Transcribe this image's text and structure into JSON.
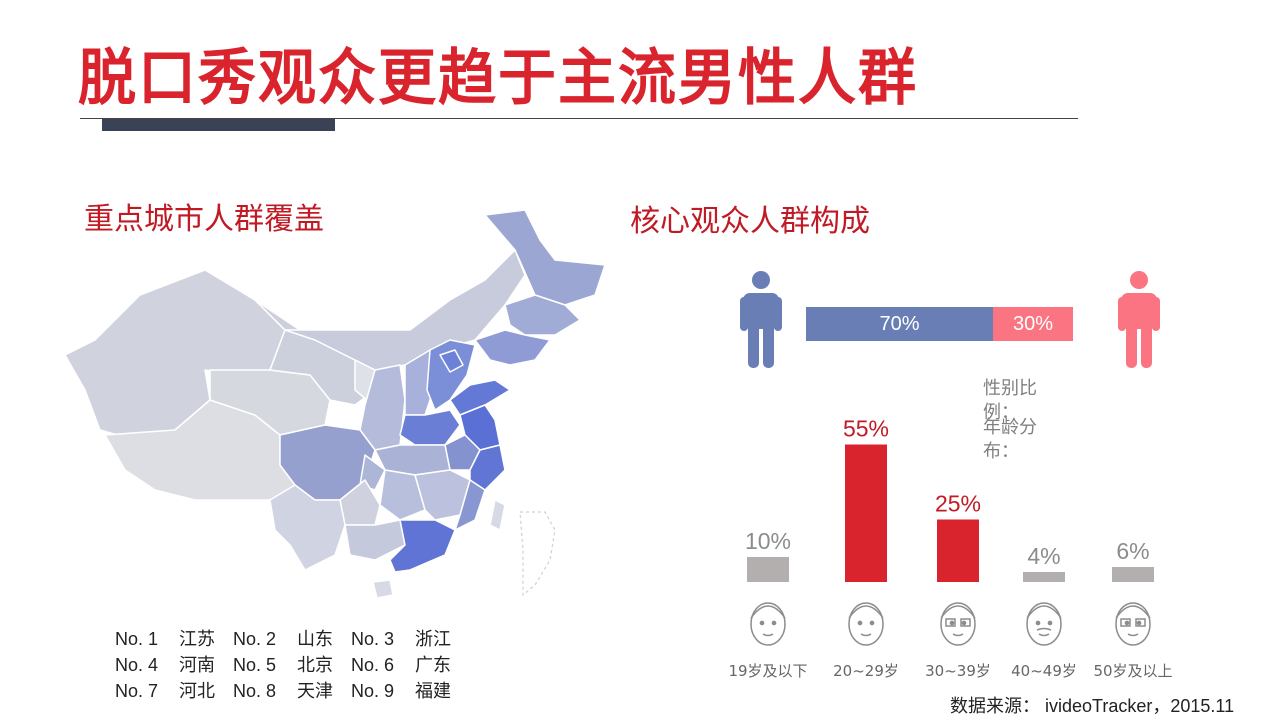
{
  "title": "脱口秀观众更趋于主流男性人群",
  "map_section": {
    "heading": "重点城市人群覆盖",
    "ranking": [
      [
        {
          "no": "No. 1",
          "city": "江苏"
        },
        {
          "no": "No. 2",
          "city": "山东"
        },
        {
          "no": "No. 3",
          "city": "浙江"
        }
      ],
      [
        {
          "no": "No. 4",
          "city": "河南"
        },
        {
          "no": "No. 5",
          "city": "北京"
        },
        {
          "no": "No. 6",
          "city": "广东"
        }
      ],
      [
        {
          "no": "No. 7",
          "city": "河北"
        },
        {
          "no": "No. 8",
          "city": "天津"
        },
        {
          "no": "No. 9",
          "city": "福建"
        }
      ]
    ]
  },
  "audience_section": {
    "heading": "核心观众人群构成",
    "gender_label": "性别比例：",
    "age_label": "年龄分布：",
    "male_color": "#6a7eb6",
    "female_color": "#fa7581"
  },
  "chart_data": [
    {
      "type": "bar",
      "orientation": "horizontal-stacked",
      "categories": [
        "male",
        "female"
      ],
      "values": [
        70,
        30
      ],
      "labels": [
        "70%",
        "30%"
      ],
      "colors": [
        "#6a7eb6",
        "#fa7581"
      ]
    },
    {
      "type": "bar",
      "categories": [
        "19岁及以下",
        "20~29岁",
        "30~39岁",
        "40~49岁",
        "50岁及以上"
      ],
      "values": [
        10,
        55,
        25,
        4,
        6
      ],
      "labels": [
        "10%",
        "55%",
        "25%",
        "4%",
        "6%"
      ],
      "highlight": [
        false,
        true,
        true,
        false,
        false
      ],
      "highlight_color": "#d9232d",
      "base_color": "#b4afaf",
      "icons": [
        "child-face-icon",
        "young-adult-face-icon",
        "glasses-face-icon",
        "mustache-face-icon",
        "elder-face-icon"
      ]
    }
  ],
  "source": "数据来源： ivideoTracker，2015.11"
}
